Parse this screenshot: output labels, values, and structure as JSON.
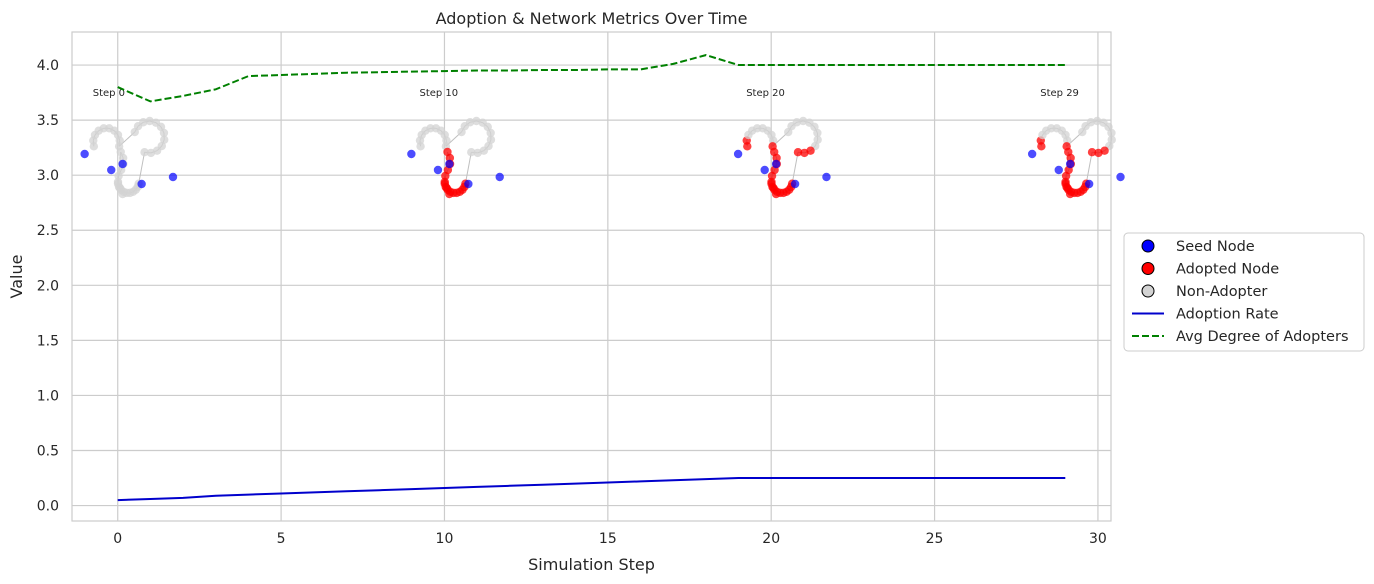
{
  "chart_data": {
    "type": "line",
    "title": "Adoption & Network Metrics Over Time",
    "xlabel": "Simulation Step",
    "ylabel": "Value",
    "xlim": [
      -1.4,
      30.4
    ],
    "ylim": [
      -0.14,
      4.3
    ],
    "xticks": [
      0,
      5,
      10,
      15,
      20,
      25,
      30
    ],
    "yticks": [
      0.0,
      0.5,
      1.0,
      1.5,
      2.0,
      2.5,
      3.0,
      3.5,
      4.0
    ],
    "grid": true,
    "legend_position": "right",
    "series": [
      {
        "name": "Adoption Rate",
        "color": "#0000cc",
        "style": "solid",
        "x": [
          0,
          1,
          2,
          3,
          4,
          5,
          6,
          7,
          8,
          9,
          10,
          11,
          12,
          13,
          14,
          15,
          16,
          17,
          18,
          19,
          20,
          21,
          22,
          23,
          24,
          25,
          26,
          27,
          28,
          29
        ],
        "y": [
          0.05,
          0.06,
          0.07,
          0.09,
          0.1,
          0.11,
          0.12,
          0.13,
          0.14,
          0.15,
          0.16,
          0.17,
          0.18,
          0.19,
          0.2,
          0.21,
          0.22,
          0.23,
          0.24,
          0.25,
          0.25,
          0.25,
          0.25,
          0.25,
          0.25,
          0.25,
          0.25,
          0.25,
          0.25,
          0.25
        ]
      },
      {
        "name": "Avg Degree of Adopters",
        "color": "#008000",
        "style": "dashed",
        "x": [
          0,
          1,
          2,
          3,
          4,
          5,
          6,
          7,
          8,
          9,
          10,
          11,
          12,
          13,
          14,
          15,
          16,
          17,
          18,
          19,
          20,
          21,
          22,
          23,
          24,
          25,
          26,
          27,
          28,
          29
        ],
        "y": [
          3.8,
          3.67,
          3.72,
          3.78,
          3.9,
          3.91,
          3.92,
          3.93,
          3.935,
          3.94,
          3.945,
          3.95,
          3.95,
          3.955,
          3.955,
          3.96,
          3.96,
          4.01,
          4.09,
          4.0,
          4.0,
          4.0,
          4.0,
          4.0,
          4.0,
          4.0,
          4.0,
          4.0,
          4.0,
          4.0
        ]
      }
    ],
    "network_snapshots": [
      {
        "label": "Step 0",
        "step": 0,
        "adopted_fraction": 0.0
      },
      {
        "label": "Step 10",
        "step": 10,
        "adopted_fraction": 0.45
      },
      {
        "label": "Step 20",
        "step": 20,
        "adopted_fraction": 0.6
      },
      {
        "label": "Step 29",
        "step": 29,
        "adopted_fraction": 0.6
      }
    ],
    "node_colors": {
      "seed": "#0000ff",
      "adopted": "#ff0000",
      "non_adopter": "#d3d3d3",
      "edge": "#bfbfbf"
    },
    "legend": [
      {
        "label": "Seed Node",
        "kind": "marker",
        "color": "#0000ff"
      },
      {
        "label": "Adopted Node",
        "kind": "marker",
        "color": "#ff0000"
      },
      {
        "label": "Non-Adopter",
        "kind": "marker",
        "color": "#d3d3d3"
      },
      {
        "label": "Adoption Rate",
        "kind": "line",
        "color": "#0000cc",
        "style": "solid"
      },
      {
        "label": "Avg Degree of Adopters",
        "kind": "line",
        "color": "#008000",
        "style": "dashed"
      }
    ]
  }
}
